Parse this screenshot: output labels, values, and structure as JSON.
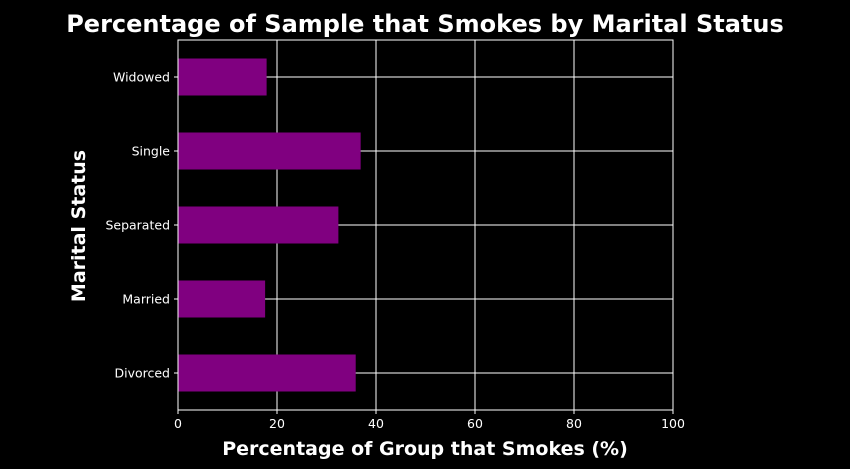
{
  "chart_data": {
    "type": "bar",
    "orientation": "horizontal",
    "title": "Percentage of Sample that Smokes by Marital Status",
    "xlabel": "Percentage of Group that Smokes (%)",
    "ylabel": "Marital Status",
    "categories": [
      "Divorced",
      "Married",
      "Separated",
      "Single",
      "Widowed"
    ],
    "values": [
      35.9,
      17.6,
      32.4,
      36.9,
      17.9
    ],
    "xlim": [
      0,
      100
    ],
    "xticks": [
      0,
      20,
      40,
      60,
      80,
      100
    ],
    "grid": true,
    "legend": "none",
    "colors": {
      "background": "#000000",
      "bar": "#800080",
      "text": "#ffffff",
      "grid": "#ffffff",
      "spine": "#ffffff"
    }
  }
}
